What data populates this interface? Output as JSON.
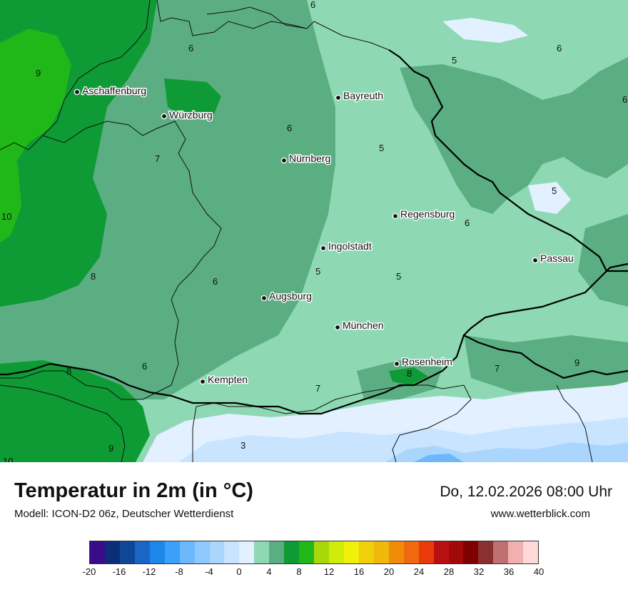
{
  "title": "Temperatur in 2m (in °C)",
  "model": "Modell: ICON-D2 06z, Deutscher Wetterdienst",
  "datetime": "Do, 12.02.2026 08:00 Uhr",
  "website": "www.wetterblick.com",
  "cities": [
    "Aschaffenburg",
    "Würzburg",
    "Bayreuth",
    "Nürnberg",
    "Regensburg",
    "Ingolstadt",
    "Passau",
    "Augsburg",
    "München",
    "Rosenheim",
    "Kempten"
  ],
  "isotherm_labels": [
    "6",
    "9",
    "6",
    "5",
    "6",
    "6",
    "6",
    "5",
    "7",
    "10",
    "5",
    "6",
    "5",
    "8",
    "6",
    "5",
    "8",
    "6",
    "7",
    "8",
    "7",
    "9",
    "3",
    "9",
    "10"
  ],
  "legend": {
    "ticks": [
      "-20",
      "-16",
      "-12",
      "-8",
      "-4",
      "0",
      "4",
      "8",
      "12",
      "16",
      "20",
      "24",
      "28",
      "32",
      "36",
      "40"
    ],
    "colors": [
      "#3a0b8a",
      "#0c2d78",
      "#0f4796",
      "#1a66c4",
      "#1e86e8",
      "#3aa0f8",
      "#6cb8fb",
      "#8fc8fc",
      "#aad6fe",
      "#c8e4fe",
      "#e2f0ff",
      "#8ed9b3",
      "#5aae82",
      "#0e9a34",
      "#20b818",
      "#a8d80a",
      "#d0ec0a",
      "#f0f00a",
      "#f0d00a",
      "#f0b80a",
      "#f08c0a",
      "#f06810",
      "#e83a0a",
      "#b81010",
      "#a00a0a",
      "#800000",
      "#8a3030",
      "#c07070",
      "#f0b0b0",
      "#ffd8d8"
    ]
  }
}
